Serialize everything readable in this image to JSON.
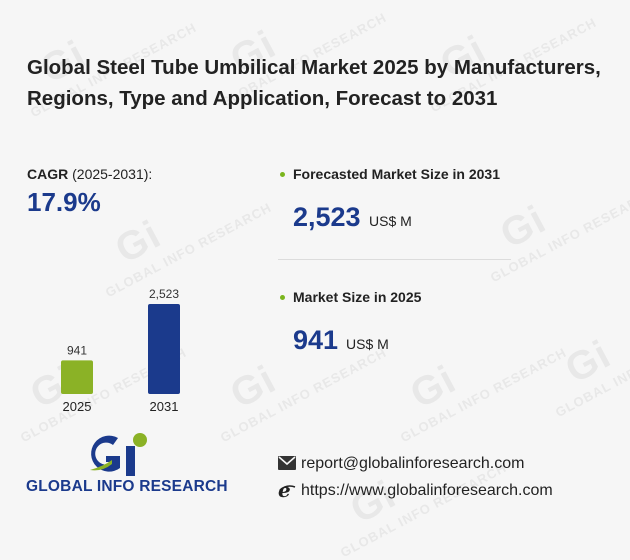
{
  "title": "Global Steel Tube Umbilical Market 2025 by Manufacturers, Regions, Type and Application, Forecast to 2031",
  "cagr": {
    "label": "CAGR",
    "period": "(2025-2031):",
    "value": "17.9%"
  },
  "metrics": [
    {
      "label": "Forecasted Market Size in 2031",
      "value": "2,523",
      "unit": "US$ M"
    },
    {
      "label": "Market Size in 2025",
      "value": "941",
      "unit": "US$ M"
    }
  ],
  "chart_data": {
    "type": "bar",
    "categories": [
      "2025",
      "2031"
    ],
    "values": [
      941,
      2523
    ],
    "value_labels": [
      "941",
      "2,523"
    ],
    "colors": [
      "#8bb226",
      "#1b3a8c"
    ],
    "title": "",
    "xlabel": "",
    "ylabel": ""
  },
  "contact": {
    "email": "report@globalinforesearch.com",
    "website": "https://www.globalinforesearch.com"
  },
  "logo": {
    "text": "GLOBAL INFO RESEARCH",
    "colors": {
      "green": "#8bb226",
      "blue": "#1b3a8c"
    }
  },
  "watermark": {
    "text": "GLOBAL INFO RESEARCH",
    "mark": "Gi"
  }
}
